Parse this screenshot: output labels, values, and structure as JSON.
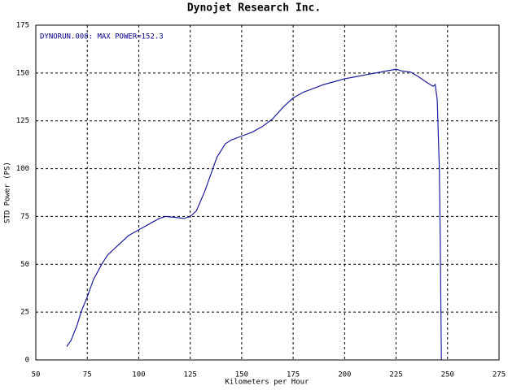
{
  "chart_data": {
    "type": "line",
    "title": "Dynojet Research Inc.",
    "annotation": "DYNORUN.008: MAX POWER=152.3",
    "xlabel": "Kilometers per Hour",
    "ylabel": "STD Power (PS)",
    "x": [
      65,
      67,
      70,
      72,
      75,
      78,
      82,
      85,
      90,
      95,
      100,
      105,
      110,
      113,
      118,
      122,
      125,
      128,
      132,
      135,
      138,
      142,
      145,
      150,
      155,
      160,
      165,
      170,
      175,
      180,
      185,
      190,
      195,
      200,
      205,
      210,
      215,
      220,
      225,
      228,
      232,
      236,
      240,
      243,
      244,
      245,
      246,
      246.5,
      247
    ],
    "series": [
      {
        "color": "#1c1c9a",
        "values": [
          7,
          10,
          18,
          25,
          33,
          42,
          50,
          55,
          60,
          65,
          68,
          71,
          74,
          75,
          74.5,
          74,
          75,
          78,
          88,
          97,
          106,
          113,
          115,
          117,
          119,
          122,
          126,
          132,
          137,
          140,
          142,
          144,
          145.5,
          147,
          148,
          149,
          150,
          151,
          152,
          151,
          150.5,
          148,
          145,
          143,
          144,
          136,
          100,
          60,
          0
        ]
      }
    ],
    "xlim": [
      50,
      275
    ],
    "xticks": [
      50,
      75,
      100,
      125,
      150,
      175,
      200,
      225,
      250,
      275
    ],
    "ylim": [
      0,
      175
    ],
    "yticks": [
      0,
      25,
      50,
      75,
      100,
      125,
      150,
      175
    ],
    "grid": true
  }
}
